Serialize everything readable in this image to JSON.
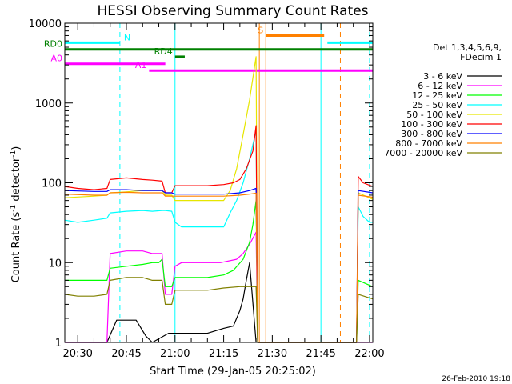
{
  "chart_data": {
    "type": "line",
    "title": "HESSI Observing Summary Count Rates",
    "xlabel": "Start Time (29-Jan-05 20:25:02)",
    "ylabel": "Count Rate (s⁻¹ detector⁻¹)",
    "ylabel_parts": {
      "main": "Count Rate (s",
      "sup1": "-1",
      "mid": " detector",
      "sup2": "-1",
      "end": ")"
    },
    "yscale": "log",
    "ylim": [
      1,
      10000
    ],
    "xlim": [
      "20:26",
      "22:01"
    ],
    "yticks": [
      "1",
      "10",
      "100",
      "1000",
      "10000"
    ],
    "xticks": [
      "20:30",
      "20:45",
      "21:00",
      "21:15",
      "21:30",
      "21:45",
      "22:00"
    ],
    "footer": "26-Feb-2010 19:18",
    "legend": {
      "position": "right",
      "header": [
        "Det 1,3,4,5,6,9,",
        "FDecim 1"
      ]
    },
    "series": [
      {
        "name": "3 - 6 keV",
        "color": "#000000",
        "points": [
          [
            "20:26",
            1
          ],
          [
            "20:39",
            1
          ],
          [
            "20:42",
            1.9
          ],
          [
            "20:45",
            1.9
          ],
          [
            "20:48",
            1.9
          ],
          [
            "20:51",
            1.2
          ],
          [
            "20:53",
            1
          ],
          [
            "20:58",
            1.3
          ],
          [
            "21:04",
            1.3
          ],
          [
            "21:10",
            1.3
          ],
          [
            "21:15",
            1.5
          ],
          [
            "21:18",
            1.6
          ],
          [
            "21:20",
            2.5
          ],
          [
            "21:21",
            3.5
          ],
          [
            "21:22",
            6
          ],
          [
            "21:23",
            10
          ],
          [
            "21:25",
            1
          ]
        ]
      },
      {
        "name": "6 - 12 keV",
        "color": "#ff00ff",
        "points": [
          [
            "20:26",
            1
          ],
          [
            "20:39",
            1
          ],
          [
            "20:40",
            13
          ],
          [
            "20:45",
            14
          ],
          [
            "20:50",
            14
          ],
          [
            "20:53",
            13
          ],
          [
            "20:56",
            13
          ],
          [
            "20:57",
            4
          ],
          [
            "20:59",
            4
          ],
          [
            "21:00",
            9
          ],
          [
            "21:02",
            10
          ],
          [
            "21:08",
            10
          ],
          [
            "21:14",
            10
          ],
          [
            "21:19",
            11
          ],
          [
            "21:21",
            13
          ],
          [
            "21:23",
            17
          ],
          [
            "21:25",
            24
          ],
          [
            "21:25.5",
            1
          ],
          [
            "22:01",
            1
          ]
        ]
      },
      {
        "name": "12 - 25 keV",
        "color": "#00ff00",
        "points": [
          [
            "20:26",
            6
          ],
          [
            "20:35",
            6
          ],
          [
            "20:39",
            6
          ],
          [
            "20:40",
            8.5
          ],
          [
            "20:45",
            9
          ],
          [
            "20:50",
            9.5
          ],
          [
            "20:53",
            10
          ],
          [
            "20:55",
            10
          ],
          [
            "20:56",
            11
          ],
          [
            "20:57",
            5
          ],
          [
            "20:59",
            5
          ],
          [
            "21:00",
            6.5
          ],
          [
            "21:05",
            6.5
          ],
          [
            "21:10",
            6.5
          ],
          [
            "21:15",
            7
          ],
          [
            "21:18",
            8
          ],
          [
            "21:21",
            11
          ],
          [
            "21:23",
            18
          ],
          [
            "21:24",
            30
          ],
          [
            "21:25",
            60
          ],
          [
            "21:25.5",
            1
          ],
          [
            "21:56",
            1
          ],
          [
            "21:56.5",
            6
          ],
          [
            "22:01",
            5
          ]
        ]
      },
      {
        "name": "25 - 50 keV",
        "color": "#00ffff",
        "points": [
          [
            "20:26",
            34
          ],
          [
            "20:30",
            32
          ],
          [
            "20:35",
            34
          ],
          [
            "20:39",
            36
          ],
          [
            "20:40",
            42
          ],
          [
            "20:45",
            44
          ],
          [
            "20:50",
            45
          ],
          [
            "20:53",
            44
          ],
          [
            "20:56",
            45
          ],
          [
            "20:57",
            45
          ],
          [
            "20:59",
            44
          ],
          [
            "21:00",
            32
          ],
          [
            "21:02",
            28
          ],
          [
            "21:05",
            28
          ],
          [
            "21:10",
            28
          ],
          [
            "21:13",
            28
          ],
          [
            "21:15",
            28
          ],
          [
            "21:17",
            42
          ],
          [
            "21:19",
            60
          ],
          [
            "21:21",
            100
          ],
          [
            "21:23",
            200
          ],
          [
            "21:25",
            450
          ],
          [
            "21:25.5",
            1
          ],
          [
            "21:56",
            1
          ],
          [
            "21:56.5",
            50
          ],
          [
            "21:58",
            38
          ],
          [
            "22:00",
            32
          ],
          [
            "22:01",
            32
          ]
        ]
      },
      {
        "name": "50 - 100 keV",
        "color": "#e6e600",
        "points": [
          [
            "20:26",
            65
          ],
          [
            "20:35",
            68
          ],
          [
            "20:39",
            70
          ],
          [
            "20:40",
            75
          ],
          [
            "20:45",
            77
          ],
          [
            "20:50",
            80
          ],
          [
            "20:56",
            80
          ],
          [
            "20:57",
            70
          ],
          [
            "20:59",
            70
          ],
          [
            "21:00",
            60
          ],
          [
            "21:05",
            60
          ],
          [
            "21:10",
            60
          ],
          [
            "21:15",
            60
          ],
          [
            "21:17",
            80
          ],
          [
            "21:19",
            150
          ],
          [
            "21:21",
            400
          ],
          [
            "21:23",
            1100
          ],
          [
            "21:25",
            3800
          ],
          [
            "21:25.5",
            1
          ],
          [
            "21:56",
            1
          ],
          [
            "21:56.5",
            75
          ],
          [
            "22:01",
            62
          ]
        ]
      },
      {
        "name": "100 - 300 keV",
        "color": "#ff0000",
        "points": [
          [
            "20:26",
            90
          ],
          [
            "20:30",
            85
          ],
          [
            "20:35",
            82
          ],
          [
            "20:39",
            85
          ],
          [
            "20:40",
            110
          ],
          [
            "20:45",
            115
          ],
          [
            "20:50",
            110
          ],
          [
            "20:53",
            108
          ],
          [
            "20:56",
            105
          ],
          [
            "20:57",
            75
          ],
          [
            "20:59",
            75
          ],
          [
            "21:00",
            92
          ],
          [
            "21:05",
            92
          ],
          [
            "21:10",
            92
          ],
          [
            "21:15",
            95
          ],
          [
            "21:18",
            100
          ],
          [
            "21:20",
            110
          ],
          [
            "21:22",
            150
          ],
          [
            "21:24",
            250
          ],
          [
            "21:25",
            520
          ],
          [
            "21:25.5",
            1
          ],
          [
            "21:56",
            1
          ],
          [
            "21:56.5",
            120
          ],
          [
            "21:58",
            100
          ],
          [
            "22:01",
            90
          ]
        ]
      },
      {
        "name": "300 - 800 keV",
        "color": "#0000ff",
        "points": [
          [
            "20:26",
            80
          ],
          [
            "20:35",
            78
          ],
          [
            "20:39",
            78
          ],
          [
            "20:40",
            82
          ],
          [
            "20:45",
            82
          ],
          [
            "20:50",
            80
          ],
          [
            "20:56",
            80
          ],
          [
            "20:57",
            75
          ],
          [
            "20:59",
            75
          ],
          [
            "21:00",
            72
          ],
          [
            "21:05",
            72
          ],
          [
            "21:10",
            72
          ],
          [
            "21:15",
            72
          ],
          [
            "21:20",
            75
          ],
          [
            "21:23",
            80
          ],
          [
            "21:25",
            85
          ],
          [
            "21:25.5",
            1
          ],
          [
            "21:56",
            1
          ],
          [
            "21:56.5",
            80
          ],
          [
            "22:01",
            75
          ]
        ]
      },
      {
        "name": "800 - 7000 keV",
        "color": "#ff8000",
        "points": [
          [
            "20:26",
            72
          ],
          [
            "20:35",
            70
          ],
          [
            "20:39",
            70
          ],
          [
            "20:40",
            75
          ],
          [
            "20:45",
            76
          ],
          [
            "20:50",
            75
          ],
          [
            "20:56",
            75
          ],
          [
            "20:57",
            68
          ],
          [
            "20:59",
            68
          ],
          [
            "21:00",
            68
          ],
          [
            "21:05",
            68
          ],
          [
            "21:10",
            68
          ],
          [
            "21:15",
            68
          ],
          [
            "21:20",
            70
          ],
          [
            "21:23",
            72
          ],
          [
            "21:25",
            74
          ],
          [
            "21:25.5",
            1
          ],
          [
            "21:56",
            1
          ],
          [
            "21:56.5",
            70
          ],
          [
            "22:01",
            66
          ]
        ]
      },
      {
        "name": "7000 - 20000 keV",
        "color": "#808000",
        "points": [
          [
            "20:26",
            4
          ],
          [
            "20:30",
            3.8
          ],
          [
            "20:35",
            3.8
          ],
          [
            "20:39",
            4
          ],
          [
            "20:40",
            6
          ],
          [
            "20:45",
            6.5
          ],
          [
            "20:50",
            6.5
          ],
          [
            "20:53",
            6
          ],
          [
            "20:56",
            6
          ],
          [
            "20:57",
            3
          ],
          [
            "20:59",
            3
          ],
          [
            "21:00",
            4.5
          ],
          [
            "21:05",
            4.5
          ],
          [
            "21:10",
            4.5
          ],
          [
            "21:15",
            4.8
          ],
          [
            "21:20",
            5
          ],
          [
            "21:23",
            5
          ],
          [
            "21:25",
            5
          ],
          [
            "21:25.5",
            1
          ],
          [
            "21:56",
            1
          ],
          [
            "21:56.5",
            4
          ],
          [
            "22:01",
            3.5
          ]
        ]
      }
    ],
    "flag_bars": [
      {
        "label": "N",
        "color": "#00ffff",
        "value": 5700,
        "label_side": "right",
        "segments": [
          [
            "20:26",
            "20:43"
          ],
          [
            "21:47",
            "22:01"
          ]
        ]
      },
      {
        "label": "RD0",
        "color": "#008000",
        "value": 4700,
        "label_side": "left",
        "segments": [
          [
            "20:26",
            "22:01"
          ]
        ]
      },
      {
        "label": "RD4",
        "color": "#008000",
        "value": 3800,
        "label_side": "left",
        "segments": [
          [
            "21:00",
            "21:03"
          ]
        ]
      },
      {
        "label": "A0",
        "color": "#ff00ff",
        "value": 3100,
        "label_side": "left",
        "segments": [
          [
            "20:26",
            "20:57"
          ]
        ]
      },
      {
        "label": "A1",
        "color": "#ff00ff",
        "value": 2550,
        "label_side": "left",
        "segments": [
          [
            "20:52",
            "22:01"
          ]
        ]
      },
      {
        "label": "S",
        "color": "#ff8000",
        "value": 7000,
        "label_side": "left",
        "segments": [
          [
            "21:28",
            "21:46"
          ]
        ]
      }
    ],
    "vertical_markers": [
      {
        "time": "20:43",
        "color": "#00ffff",
        "style": "dashed"
      },
      {
        "time": "21:00",
        "color": "#00ffff",
        "style": "solid"
      },
      {
        "time": "21:26",
        "color": "#ff8000",
        "style": "solid"
      },
      {
        "time": "21:28",
        "color": "#ff8000",
        "style": "solid"
      },
      {
        "time": "21:45",
        "color": "#00ffff",
        "style": "solid"
      },
      {
        "time": "21:51",
        "color": "#ff8000",
        "style": "dashed"
      },
      {
        "time": "22:00",
        "color": "#00ffff",
        "style": "dashed"
      }
    ]
  }
}
